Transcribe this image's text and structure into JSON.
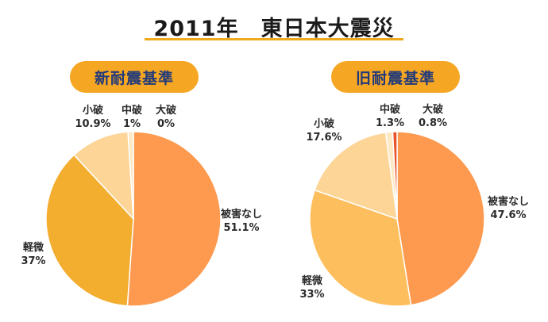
{
  "title": "2011年　東日本大震災",
  "chart_data": [
    {
      "type": "pie",
      "title": "新耐震基準",
      "slices": [
        {
          "label": "被害なし",
          "value": 51.1,
          "display": "51.1%",
          "color": "#fd9a4f"
        },
        {
          "label": "軽微",
          "value": 37,
          "display": "37%",
          "color": "#f3ad2f"
        },
        {
          "label": "小破",
          "value": 10.9,
          "display": "10.9%",
          "color": "#fdd596"
        },
        {
          "label": "中破",
          "value": 1,
          "display": "1%",
          "color": "#fde9c4"
        },
        {
          "label": "大破",
          "value": 0,
          "display": "0%",
          "color": "#e8532c"
        }
      ]
    },
    {
      "type": "pie",
      "title": "旧耐震基準",
      "slices": [
        {
          "label": "被害なし",
          "value": 47.6,
          "display": "47.6%",
          "color": "#fd9a4f"
        },
        {
          "label": "軽微",
          "value": 33,
          "display": "33%",
          "color": "#fdbf5e"
        },
        {
          "label": "小破",
          "value": 17.6,
          "display": "17.6%",
          "color": "#fdd596"
        },
        {
          "label": "中破",
          "value": 1.3,
          "display": "1.3%",
          "color": "#fde9c4"
        },
        {
          "label": "大破",
          "value": 0.8,
          "display": "0.8%",
          "color": "#e8532c"
        }
      ]
    }
  ]
}
